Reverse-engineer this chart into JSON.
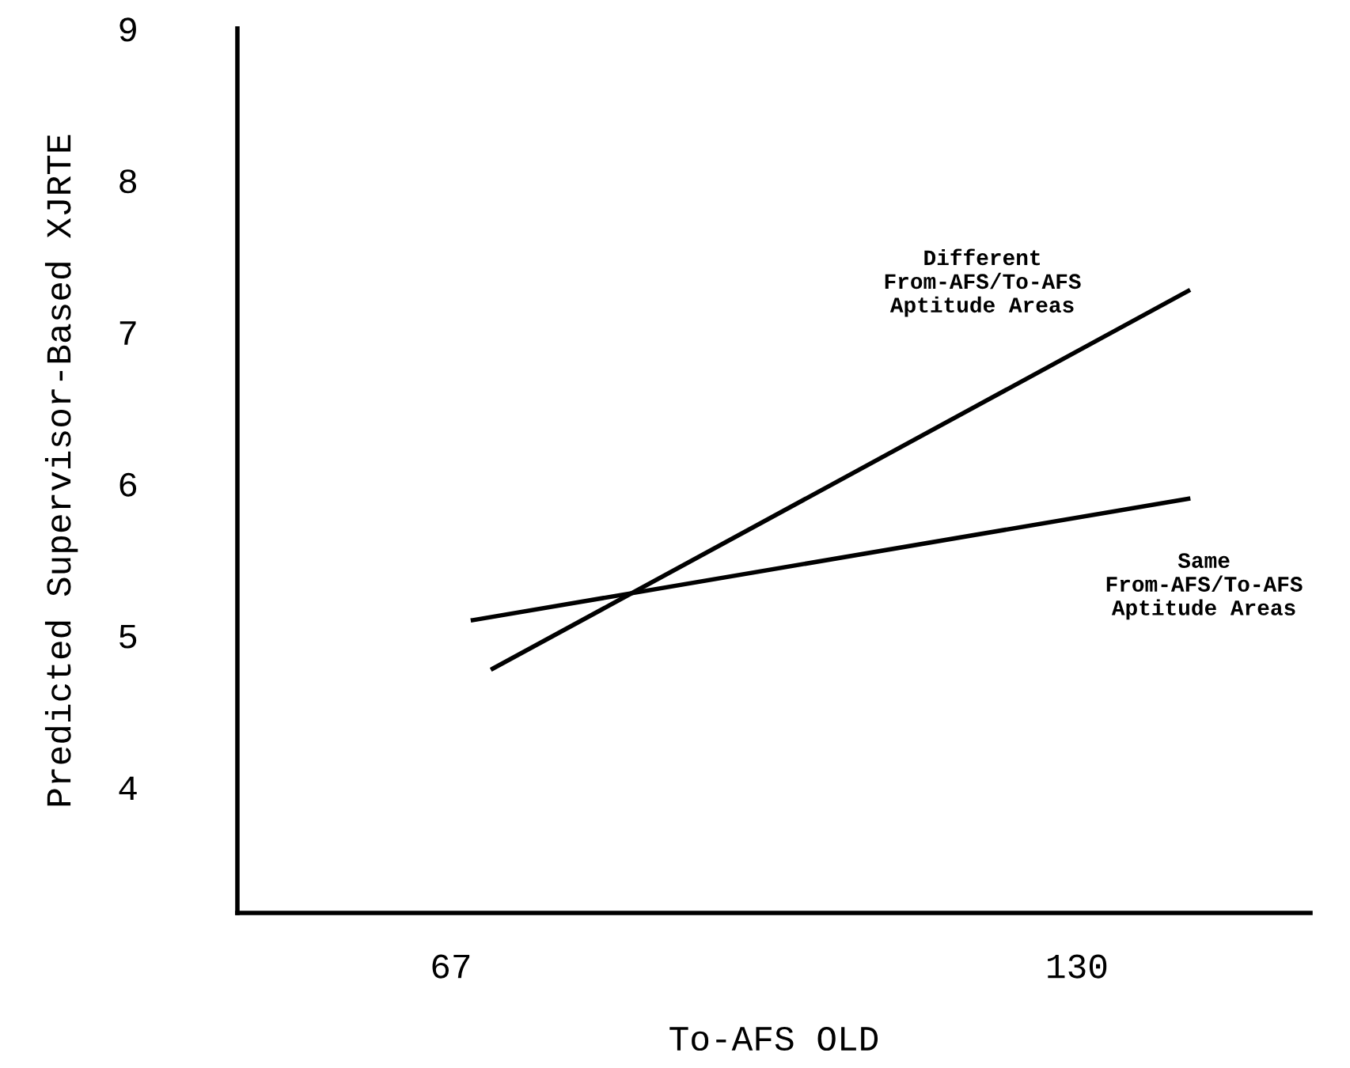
{
  "chart_data": {
    "type": "line",
    "xlabel": "To-AFS OLD",
    "ylabel": "Predicted Supervisor-Based XJRTE",
    "xlim": [
      45.5,
      153.5
    ],
    "xticks": [
      67,
      130
    ],
    "ylim": [
      3.17,
      9
    ],
    "yticks": [
      4,
      5,
      6,
      7,
      8,
      9
    ],
    "series": [
      {
        "name": "Different\nFrom-AFS/To-AFS\nAptitude Areas",
        "color": "#000000",
        "x": [
          71.2,
          141.2
        ],
        "values": [
          4.78,
          7.27
        ]
      },
      {
        "name": "Same\nFrom-AFS/To-AFS\nAptitude Areas",
        "color": "#000000",
        "x": [
          69.2,
          141.2
        ],
        "values": [
          5.1,
          5.9
        ]
      }
    ],
    "grid": false,
    "legend": false,
    "line_style": "solid",
    "marker": "none"
  }
}
